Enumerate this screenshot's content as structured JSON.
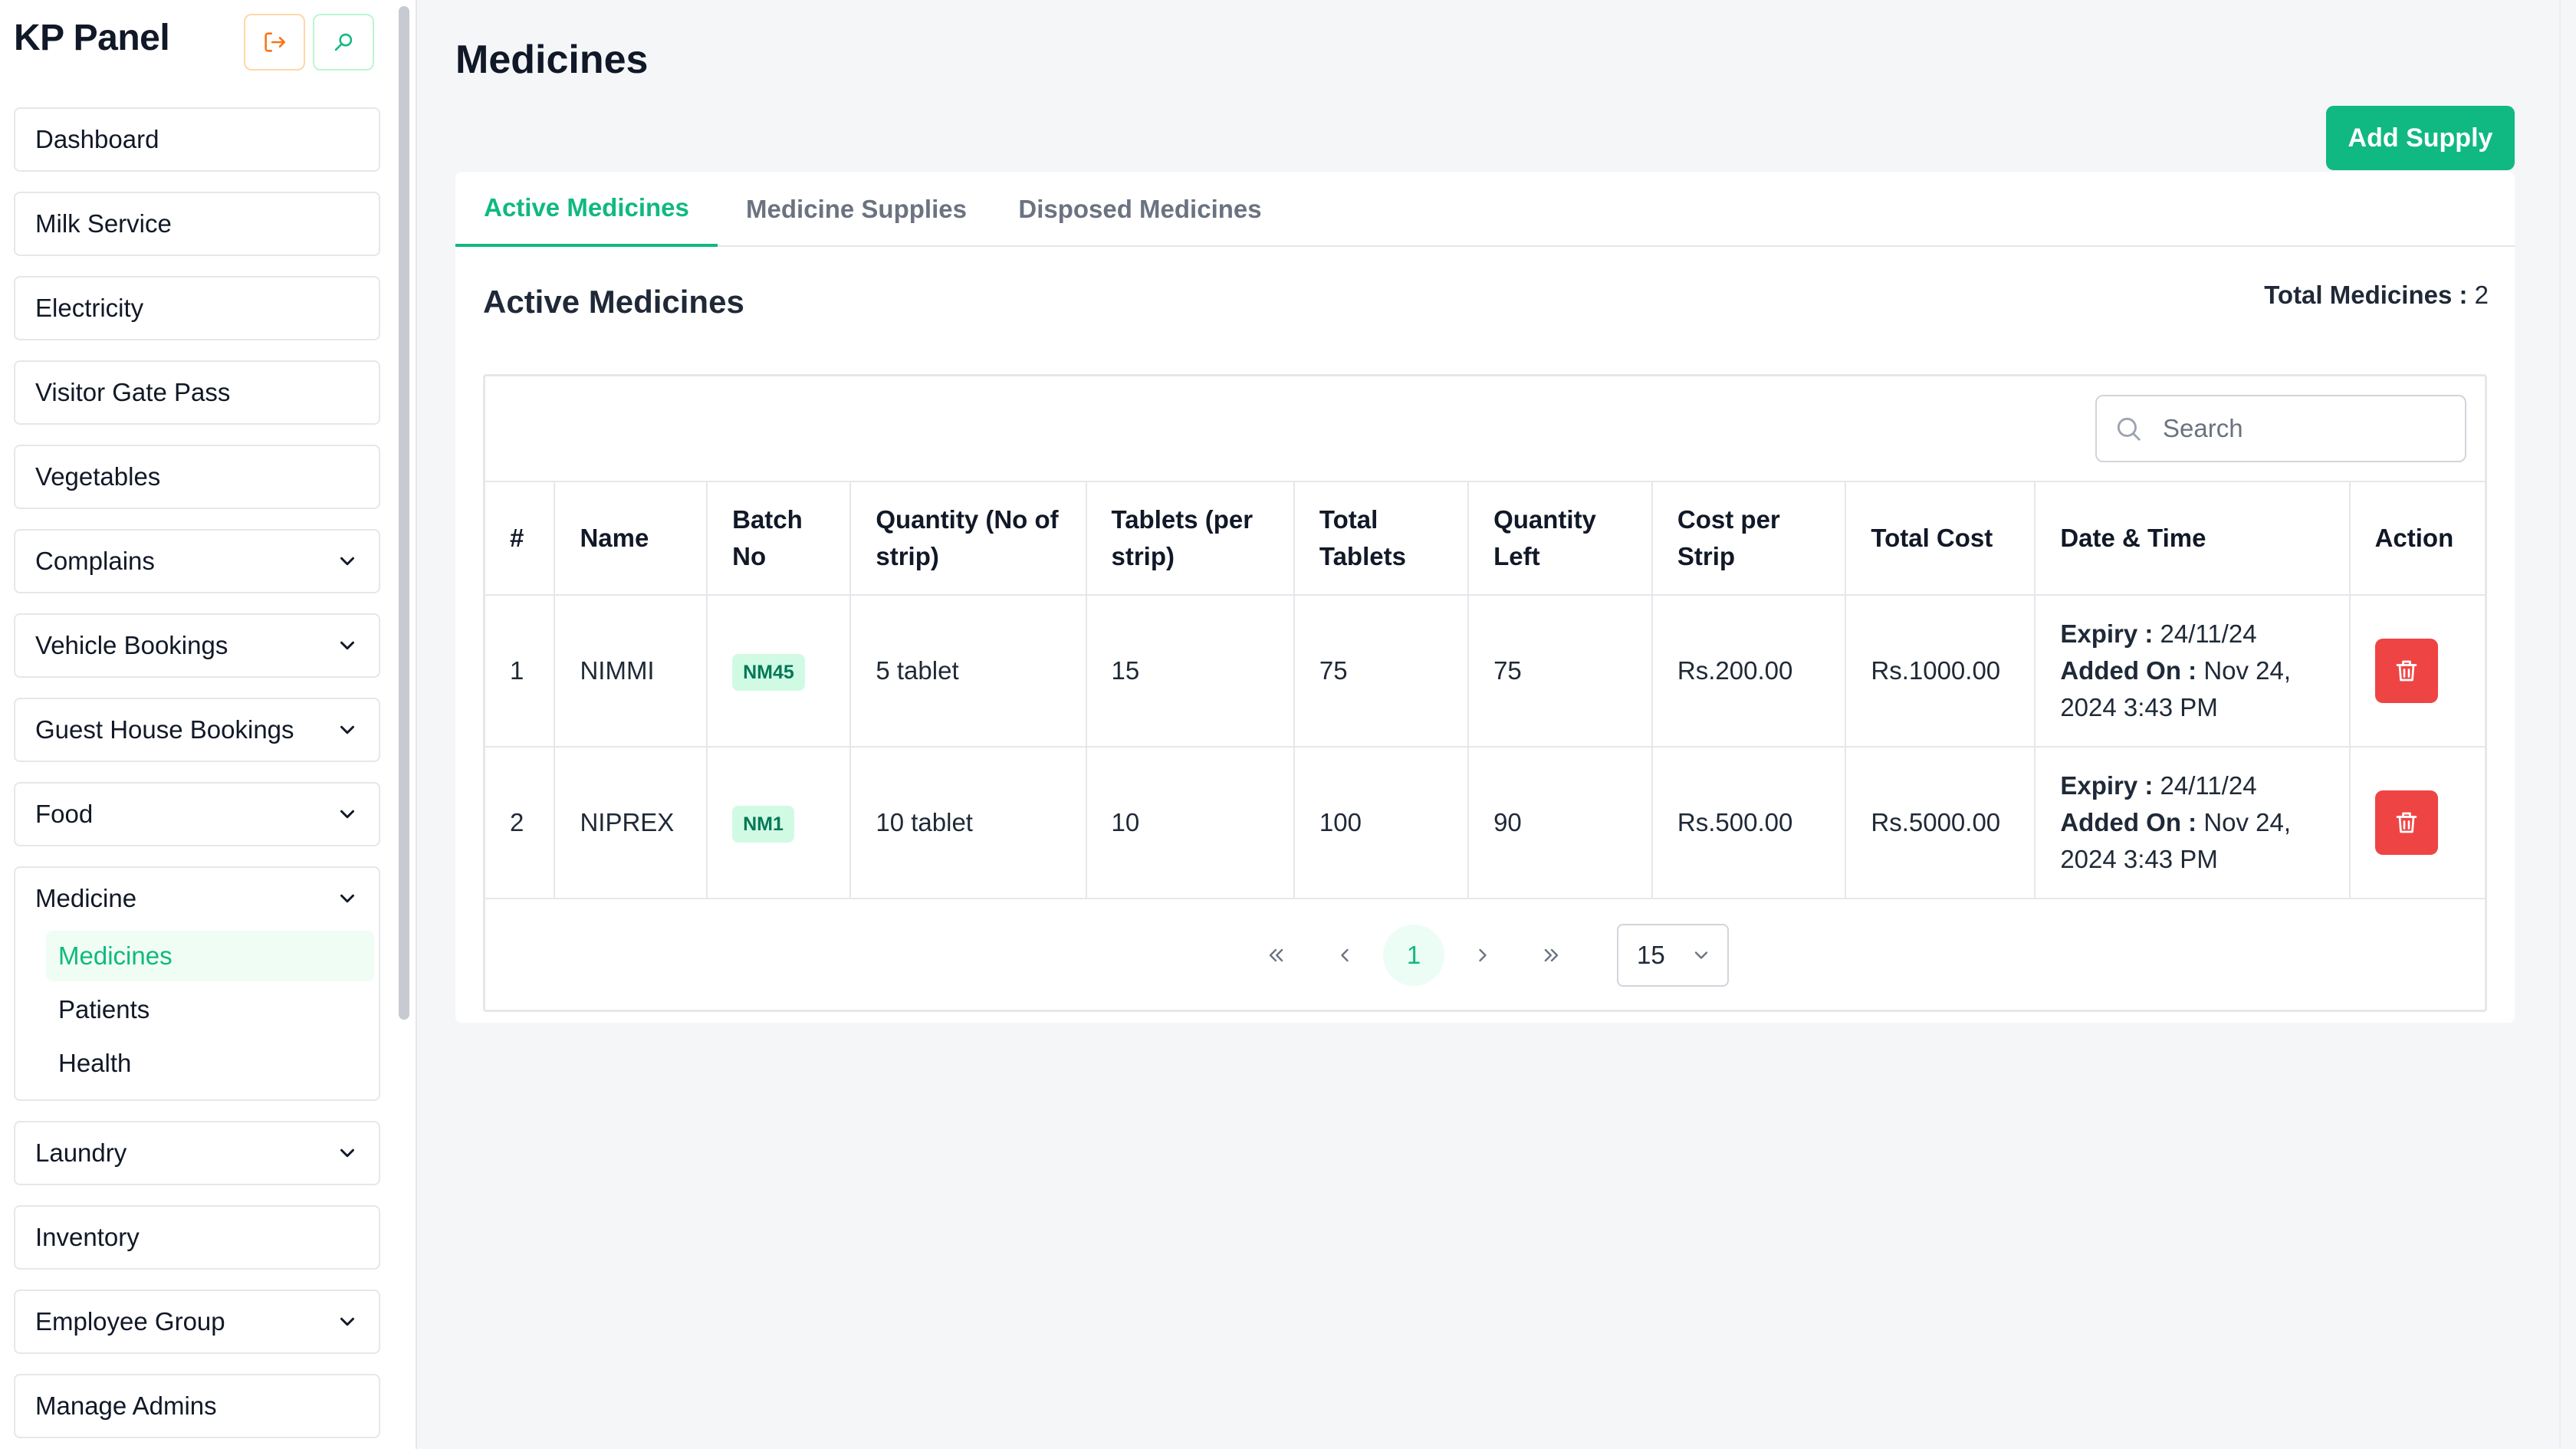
{
  "sidebar": {
    "brand": "KP Panel",
    "items": [
      {
        "label": "Dashboard",
        "expandable": false
      },
      {
        "label": "Milk Service",
        "expandable": false
      },
      {
        "label": "Electricity",
        "expandable": false
      },
      {
        "label": "Visitor Gate Pass",
        "expandable": false
      },
      {
        "label": "Vegetables",
        "expandable": false
      },
      {
        "label": "Complains",
        "expandable": true
      },
      {
        "label": "Vehicle Bookings",
        "expandable": true
      },
      {
        "label": "Guest House Bookings",
        "expandable": true
      },
      {
        "label": "Food",
        "expandable": true
      },
      {
        "label": "Medicine",
        "expandable": true,
        "children": [
          "Medicines",
          "Patients",
          "Health"
        ],
        "active_child": "Medicines"
      },
      {
        "label": "Laundry",
        "expandable": true
      },
      {
        "label": "Inventory",
        "expandable": false
      },
      {
        "label": "Employee Group",
        "expandable": true
      },
      {
        "label": "Manage Admins",
        "expandable": false
      }
    ]
  },
  "page": {
    "title": "Medicines",
    "add_supply_label": "Add Supply"
  },
  "tabs": [
    {
      "label": "Active Medicines",
      "active": true
    },
    {
      "label": "Medicine Supplies",
      "active": false
    },
    {
      "label": "Disposed Medicines",
      "active": false
    }
  ],
  "section": {
    "title": "Active Medicines",
    "total_label": "Total Medicines :",
    "total_value": "2"
  },
  "search": {
    "placeholder": "Search",
    "value": ""
  },
  "table": {
    "columns": [
      "#",
      "Name",
      "Batch No",
      "Quantity (No of strip)",
      "Tablets (per strip)",
      "Total Tablets",
      "Quantity Left",
      "Cost per Strip",
      "Total Cost",
      "Date & Time",
      "Action"
    ],
    "rows": [
      {
        "index": "1",
        "name": "NIMMI",
        "batch": "NM45",
        "quantity": "5 tablet",
        "per_strip": "15",
        "total_tablets": "75",
        "qty_left": "75",
        "cost_per_strip": "Rs.200.00",
        "total_cost": "Rs.1000.00",
        "expiry_label": "Expiry :",
        "expiry": "24/11/24",
        "added_label": "Added On :",
        "added": "Nov 24, 2024 3:43 PM"
      },
      {
        "index": "2",
        "name": "NIPREX",
        "batch": "NM1",
        "quantity": "10 tablet",
        "per_strip": "10",
        "total_tablets": "100",
        "qty_left": "90",
        "cost_per_strip": "Rs.500.00",
        "total_cost": "Rs.5000.00",
        "expiry_label": "Expiry :",
        "expiry": "24/11/24",
        "added_label": "Added On :",
        "added": "Nov 24, 2024 3:43 PM"
      }
    ]
  },
  "pagination": {
    "current_page": "1",
    "per_page": "15"
  },
  "icons": {
    "logout": "logout-icon",
    "search": "search-icon",
    "delete": "trash-icon",
    "chevron": "chevron-down-icon"
  },
  "colors": {
    "accent": "#10b981",
    "danger": "#ef4444",
    "badge_bg": "#d1fae5"
  }
}
